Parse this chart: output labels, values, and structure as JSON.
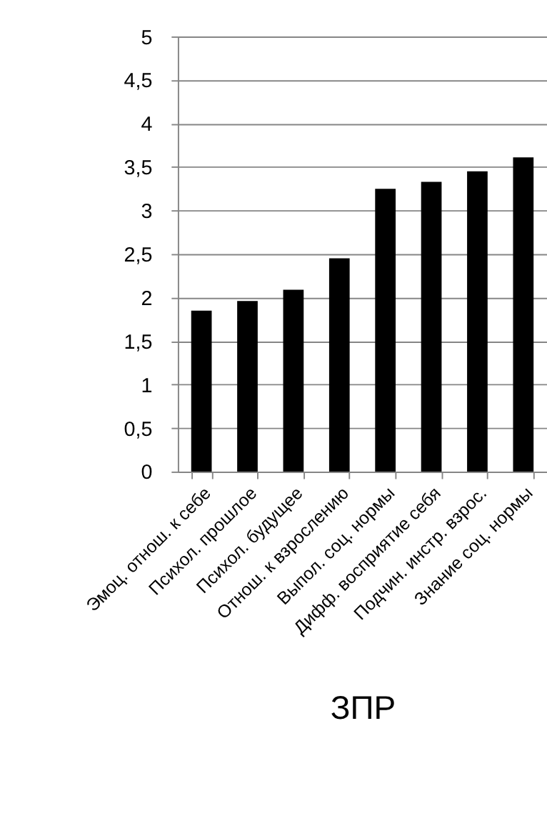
{
  "chart_data": {
    "type": "bar",
    "xlabel": "ЗПР",
    "categories": [
      "Эмоц. отнош. к себе",
      "Психол. прошлое",
      "Психол. будущее",
      "Отнош. к взрослению",
      "Выпол. соц. нормы",
      "Дифф. восприятие себя",
      "Подчин.  инстр. взрос.",
      "Знание соц. нормы"
    ],
    "values": [
      1.85,
      1.96,
      2.09,
      2.45,
      3.25,
      3.33,
      3.45,
      3.61
    ],
    "color": "#000000",
    "ylim": [
      0,
      5
    ],
    "yticks": [
      0,
      {
        "value": 0.5,
        "label": "0,5"
      },
      1,
      {
        "value": 1.5,
        "label": "1,5"
      },
      2,
      {
        "value": 2.5,
        "label": "2,5"
      },
      3,
      {
        "value": 3.5,
        "label": "3,5"
      },
      4,
      {
        "value": 4.5,
        "label": "4,5"
      },
      5
    ],
    "grid": "y"
  }
}
